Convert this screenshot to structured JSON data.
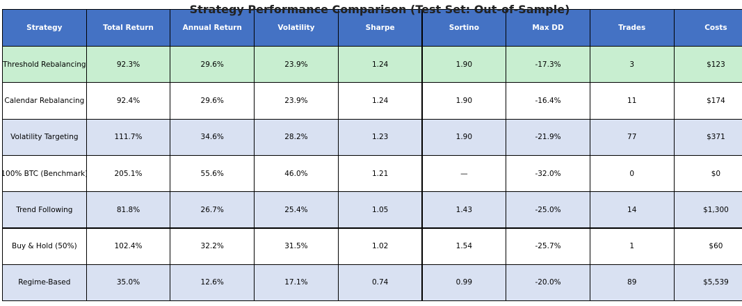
{
  "title": "Strategy Performance Comparison (Test Set: Out-of-Sample)",
  "table": {
    "header": [
      "Strategy",
      "Total Return",
      "Annual Return",
      "Volatility",
      "Sharpe",
      "Sortino",
      "Max DD",
      "Trades",
      "Costs"
    ],
    "rows": [
      [
        "Threshold Rebalancing",
        "92.3%",
        "29.6%",
        "23.9%",
        "1.24",
        "1.90",
        "-17.3%",
        "3",
        "$123"
      ],
      [
        "Calendar Rebalancing",
        "92.4%",
        "29.6%",
        "23.9%",
        "1.24",
        "1.90",
        "-16.4%",
        "11",
        "$174"
      ],
      [
        "Volatility Targeting",
        "111.7%",
        "34.6%",
        "28.2%",
        "1.23",
        "1.90",
        "-21.9%",
        "77",
        "$371"
      ],
      [
        "100% BTC (Benchmark)",
        "205.1%",
        "55.6%",
        "46.0%",
        "1.21",
        "—",
        "-32.0%",
        "0",
        "$0"
      ],
      [
        "Trend Following",
        "81.8%",
        "26.7%",
        "25.4%",
        "1.05",
        "1.43",
        "-25.0%",
        "14",
        "$1,300"
      ],
      [
        "Buy & Hold (50%)",
        "102.4%",
        "32.2%",
        "31.5%",
        "1.02",
        "1.54",
        "-25.7%",
        "1",
        "$60"
      ],
      [
        "Regime-Based",
        "35.0%",
        "12.6%",
        "17.1%",
        "0.74",
        "0.99",
        "-20.0%",
        "89",
        "$5,539"
      ]
    ]
  }
}
